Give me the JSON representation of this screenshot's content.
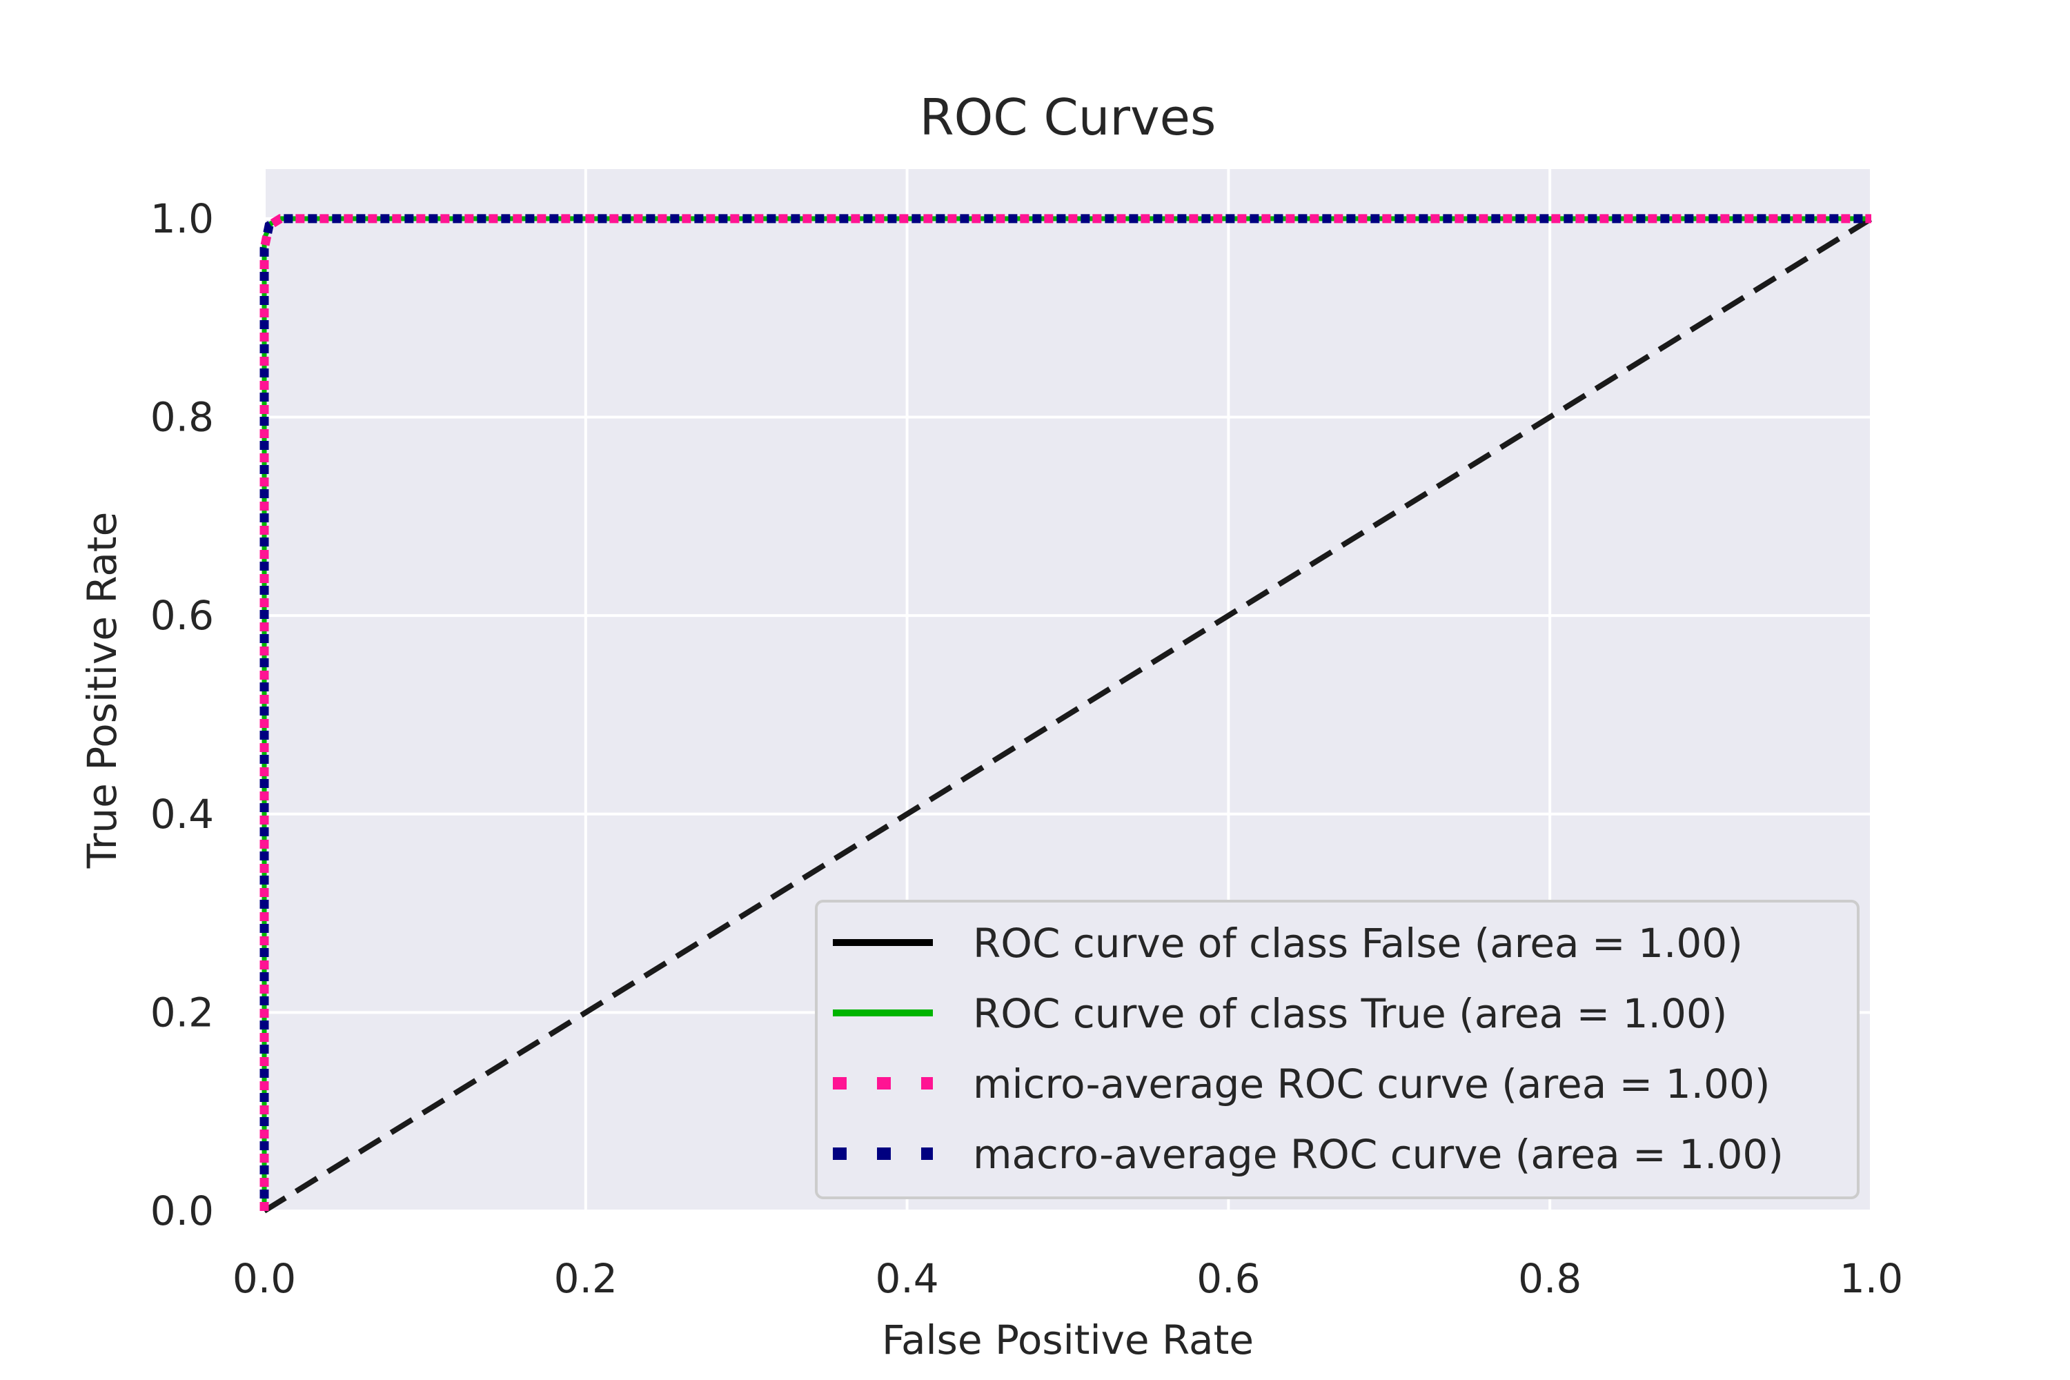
{
  "chart_data": {
    "type": "line",
    "title": "ROC Curves",
    "xlabel": "False Positive Rate",
    "ylabel": "True Positive Rate",
    "xlim": [
      0.0,
      1.0
    ],
    "ylim": [
      0.0,
      1.05
    ],
    "xticks": [
      "0.0",
      "0.2",
      "0.4",
      "0.6",
      "0.8",
      "1.0"
    ],
    "yticks": [
      "0.0",
      "0.2",
      "0.4",
      "0.6",
      "0.8",
      "1.0"
    ],
    "grid": true,
    "legend_position": "lower-right",
    "colors": {
      "background": "#eaeaf2",
      "grid": "#ffffff",
      "class_false": "#000000",
      "class_true": "#00b400",
      "micro": "#ff1493",
      "macro": "#000080",
      "diagonal": "#1a1a1a"
    },
    "series": [
      {
        "name": "ROC curve of class False (area = 1.00)",
        "style": "solid",
        "x": [
          0.0,
          0.0,
          0.004,
          0.01,
          1.0
        ],
        "y": [
          0.0,
          0.98,
          0.995,
          1.0,
          1.0
        ]
      },
      {
        "name": "ROC curve of class True (area = 1.00)",
        "style": "solid",
        "x": [
          0.0,
          0.0,
          0.004,
          0.01,
          1.0
        ],
        "y": [
          0.0,
          0.98,
          0.995,
          1.0,
          1.0
        ]
      },
      {
        "name": "micro-average ROC curve (area = 1.00)",
        "style": "dotted",
        "x": [
          0.0,
          0.0,
          0.003,
          0.01,
          1.0
        ],
        "y": [
          0.0,
          0.97,
          0.993,
          1.0,
          1.0
        ]
      },
      {
        "name": "macro-average ROC curve (area = 1.00)",
        "style": "dotted",
        "x": [
          0.0,
          0.0,
          0.003,
          0.01,
          1.0
        ],
        "y": [
          0.0,
          0.97,
          0.993,
          1.0,
          1.0
        ]
      }
    ],
    "diagonal": {
      "x": [
        0.0,
        1.0
      ],
      "y": [
        0.0,
        1.0
      ],
      "style": "dashed"
    }
  }
}
